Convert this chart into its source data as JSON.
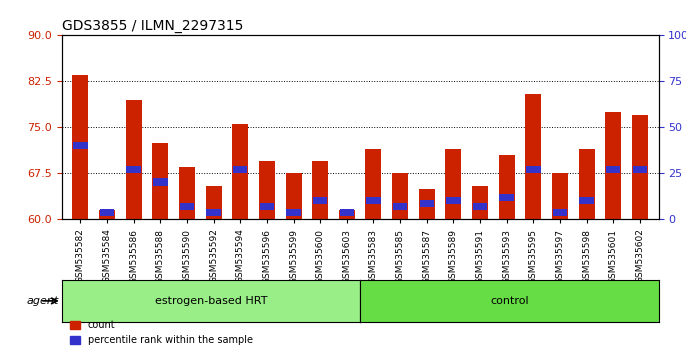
{
  "title": "GDS3855 / ILMN_2297315",
  "samples": [
    "GSM535582",
    "GSM535584",
    "GSM535586",
    "GSM535588",
    "GSM535590",
    "GSM535592",
    "GSM535594",
    "GSM535596",
    "GSM535599",
    "GSM535600",
    "GSM535603",
    "GSM535583",
    "GSM535585",
    "GSM535587",
    "GSM535589",
    "GSM535591",
    "GSM535593",
    "GSM535595",
    "GSM535597",
    "GSM535598",
    "GSM535601",
    "GSM535602"
  ],
  "bar_heights": [
    83.5,
    61.5,
    79.5,
    72.5,
    68.5,
    65.5,
    75.5,
    69.5,
    67.5,
    69.5,
    61.5,
    71.5,
    67.5,
    65.0,
    71.5,
    65.5,
    70.5,
    80.5,
    67.5,
    71.5,
    77.5,
    77.0
  ],
  "blue_positions": [
    71.5,
    60.5,
    67.5,
    65.5,
    61.5,
    60.5,
    67.5,
    61.5,
    60.5,
    62.5,
    60.5,
    62.5,
    61.5,
    62.0,
    62.5,
    61.5,
    63.0,
    67.5,
    60.5,
    62.5,
    67.5,
    67.5
  ],
  "percentile_values": [
    47,
    3,
    35,
    18,
    8,
    3,
    25,
    8,
    3,
    10,
    3,
    12,
    8,
    13,
    12,
    7,
    15,
    27,
    3,
    10,
    27,
    27
  ],
  "group1_count": 11,
  "group2_count": 11,
  "group1_label": "estrogen-based HRT",
  "group2_label": "control",
  "agent_label": "agent",
  "ylim_left": [
    60,
    90
  ],
  "ylim_right": [
    0,
    100
  ],
  "yticks_left": [
    60,
    67.5,
    75,
    82.5,
    90
  ],
  "yticks_right": [
    0,
    25,
    50,
    75,
    100
  ],
  "bar_color": "#cc2200",
  "blue_color": "#3333cc",
  "group1_color": "#99ee88",
  "group2_color": "#66dd44",
  "bg_color": "#f0f0f0",
  "bar_width": 0.6,
  "baseline": 60
}
